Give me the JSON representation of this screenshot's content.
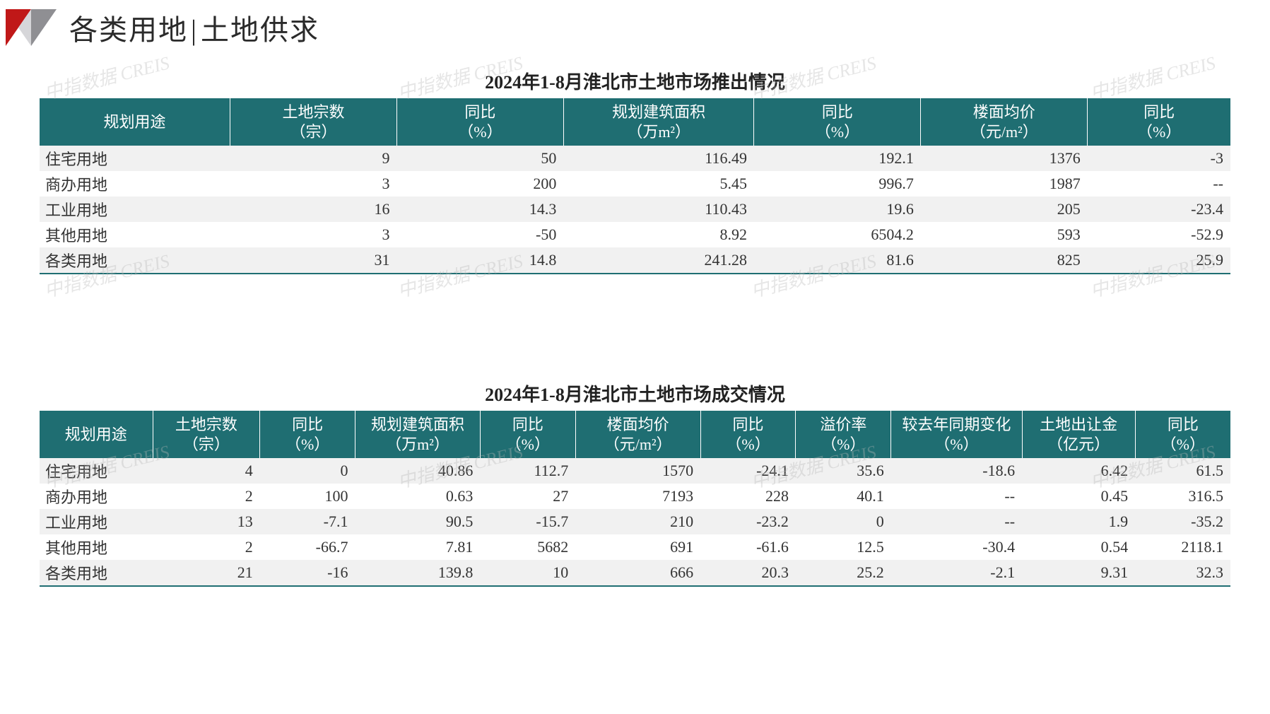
{
  "header": {
    "title_left": "各类用地",
    "title_right": "土地供求"
  },
  "colors": {
    "header_bg": "#1f6e72",
    "header_text": "#ffffff",
    "row_alt": "#f1f1f1",
    "row_base": "#ffffff",
    "border_bottom": "#1f6e72",
    "wedge_red": "#c01818",
    "wedge_grey": "#8f8f93",
    "watermark": "#b8b8b8"
  },
  "watermark_text": "中指数据 CREIS",
  "table1": {
    "caption": "2024年1-8月淮北市土地市场推出情况",
    "columns": [
      "规划用途",
      "土地宗数\n（宗）",
      "同比\n（%）",
      "规划建筑面积\n（万m²）",
      "同比\n（%）",
      "楼面均价\n（元/m²）",
      "同比\n（%）"
    ],
    "col_widths": [
      "16%",
      "14%",
      "14%",
      "16%",
      "14%",
      "14%",
      "12%"
    ],
    "rows": [
      [
        "住宅用地",
        "9",
        "50",
        "116.49",
        "192.1",
        "1376",
        "-3"
      ],
      [
        "商办用地",
        "3",
        "200",
        "5.45",
        "996.7",
        "1987",
        "--"
      ],
      [
        "工业用地",
        "16",
        "14.3",
        "110.43",
        "19.6",
        "205",
        "-23.4"
      ],
      [
        "其他用地",
        "3",
        "-50",
        "8.92",
        "6504.2",
        "593",
        "-52.9"
      ],
      [
        "各类用地",
        "31",
        "14.8",
        "241.28",
        "81.6",
        "825",
        "25.9"
      ]
    ]
  },
  "table2": {
    "caption": "2024年1-8月淮北市土地市场成交情况",
    "columns": [
      "规划用途",
      "土地宗数\n（宗）",
      "同比\n（%）",
      "规划建筑面积\n（万m²）",
      "同比\n（%）",
      "楼面均价\n（元/m²）",
      "同比\n（%）",
      "溢价率\n（%）",
      "较去年同期变化\n（%）",
      "土地出让金\n（亿元）",
      "同比\n（%）"
    ],
    "col_widths": [
      "9.5%",
      "9%",
      "8%",
      "10.5%",
      "8%",
      "10.5%",
      "8%",
      "8%",
      "11%",
      "9.5%",
      "8%"
    ],
    "rows": [
      [
        "住宅用地",
        "4",
        "0",
        "40.86",
        "112.7",
        "1570",
        "-24.1",
        "35.6",
        "-18.6",
        "6.42",
        "61.5"
      ],
      [
        "商办用地",
        "2",
        "100",
        "0.63",
        "27",
        "7193",
        "228",
        "40.1",
        "--",
        "0.45",
        "316.5"
      ],
      [
        "工业用地",
        "13",
        "-7.1",
        "90.5",
        "-15.7",
        "210",
        "-23.2",
        "0",
        "--",
        "1.9",
        "-35.2"
      ],
      [
        "其他用地",
        "2",
        "-66.7",
        "7.81",
        "5682",
        "691",
        "-61.6",
        "12.5",
        "-30.4",
        "0.54",
        "2118.1"
      ],
      [
        "各类用地",
        "21",
        "-16",
        "139.8",
        "10",
        "666",
        "20.3",
        "25.2",
        "-2.1",
        "9.31",
        "32.3"
      ]
    ]
  }
}
